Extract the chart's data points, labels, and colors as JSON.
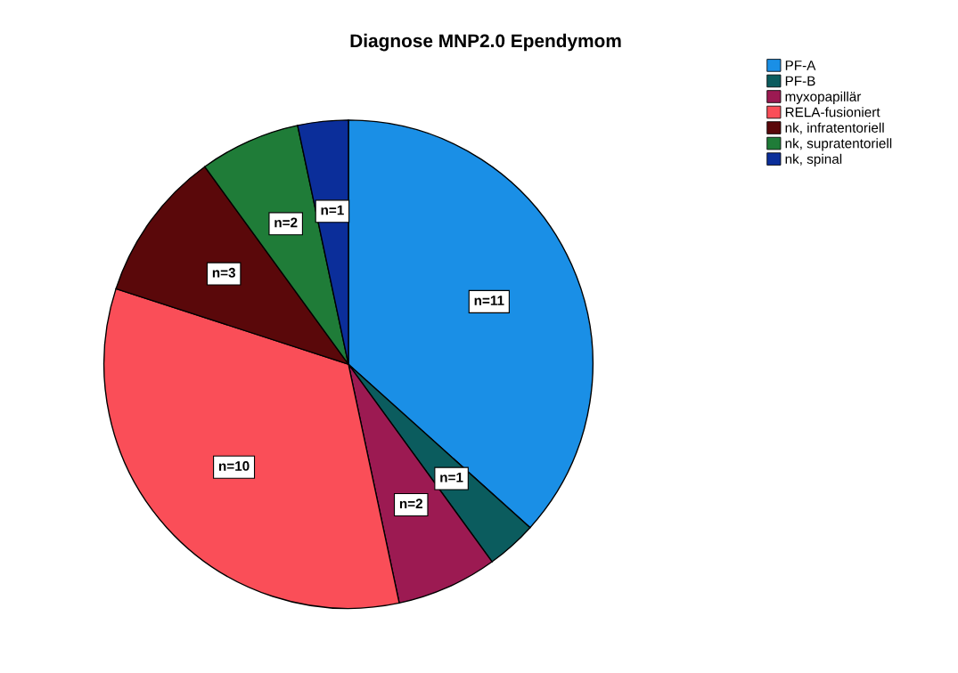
{
  "chart_data": {
    "type": "pie",
    "title": "Diagnose MNP2.0 Ependymom",
    "categories": [
      "PF-A",
      "PF-B",
      "myxopapillär",
      "RELA-fusioniert",
      "nk, infratentoriell",
      "nk, supratentoriell",
      "nk, spinal"
    ],
    "values": [
      11,
      1,
      2,
      10,
      3,
      2,
      1
    ],
    "colors": [
      "#1a8fe6",
      "#0b5c5e",
      "#9c1a52",
      "#fa4e58",
      "#5a080a",
      "#1f7c38",
      "#0b2e9a"
    ],
    "value_labels": [
      "n=11",
      "n=1",
      "n=2",
      "n=10",
      "n=3",
      "n=2",
      "n=1"
    ],
    "legend": "top right"
  }
}
